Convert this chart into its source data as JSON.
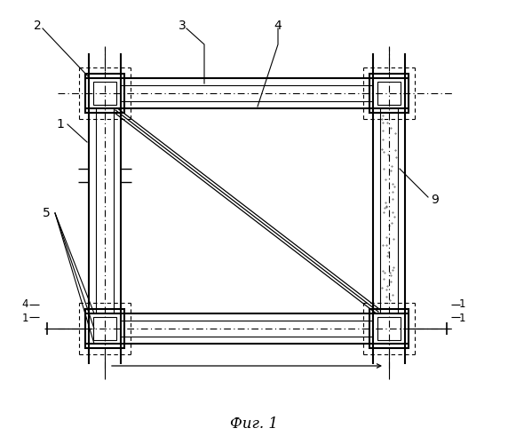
{
  "fig_label": "Фиг. 1",
  "bg_color": "#ffffff",
  "line_color": "#000000",
  "figsize": [
    5.72,
    5.0
  ],
  "dpi": 100,
  "lcx": 118,
  "rcx": 438,
  "tby": 395,
  "bby": 130,
  "col_hw": 10,
  "col_ohw": 18,
  "beam_hh": 9,
  "beam_ohh": 17,
  "joint_os": 22,
  "joint_is": 13
}
